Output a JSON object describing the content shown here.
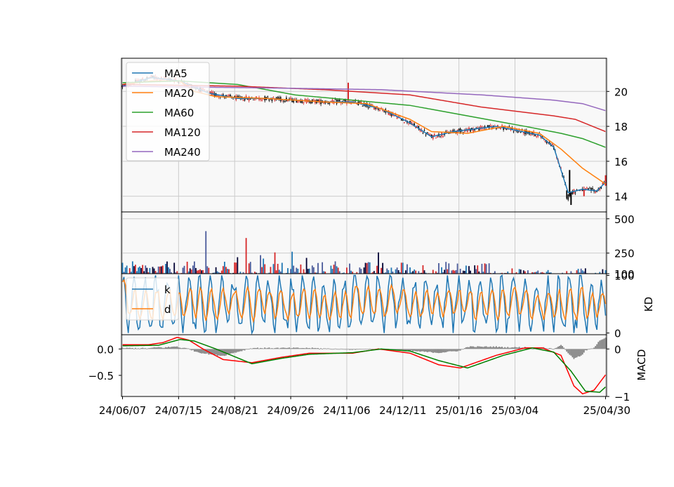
{
  "chart_data": [
    {
      "panel": "price",
      "type": "candlestick",
      "y_ticks": [
        14,
        16,
        18,
        20
      ],
      "ylim": [
        13.1,
        21.9
      ],
      "grid": true,
      "legend": "top-left",
      "colors": {
        "up": "#d62728",
        "down": "#000000",
        "bg": "#f8f8f8",
        "grid": "#cccccc"
      },
      "series": [
        {
          "name": "MA5",
          "color": "#1f77b4",
          "anchors": [
            [
              0,
              20.3
            ],
            [
              20,
              20.8
            ],
            [
              40,
              20.6
            ],
            [
              60,
              19.9
            ],
            [
              80,
              19.6
            ],
            [
              100,
              19.6
            ],
            [
              120,
              19.5
            ],
            [
              140,
              19.4
            ],
            [
              160,
              19.4
            ],
            [
              180,
              19.0
            ],
            [
              200,
              18.2
            ],
            [
              215,
              17.4
            ],
            [
              230,
              17.7
            ],
            [
              260,
              18.0
            ],
            [
              290,
              17.5
            ],
            [
              300,
              16.8
            ],
            [
              310,
              14.2
            ],
            [
              320,
              14.4
            ],
            [
              330,
              14.3
            ],
            [
              336,
              14.8
            ]
          ]
        },
        {
          "name": "MA20",
          "color": "#ff7f0e",
          "anchors": [
            [
              0,
              20.4
            ],
            [
              20,
              20.6
            ],
            [
              40,
              20.6
            ],
            [
              50,
              20.0
            ],
            [
              65,
              19.7
            ],
            [
              100,
              19.6
            ],
            [
              140,
              19.4
            ],
            [
              170,
              19.3
            ],
            [
              200,
              18.4
            ],
            [
              215,
              17.7
            ],
            [
              240,
              17.6
            ],
            [
              265,
              18.0
            ],
            [
              290,
              17.6
            ],
            [
              305,
              16.7
            ],
            [
              320,
              15.6
            ],
            [
              336,
              14.7
            ]
          ]
        },
        {
          "name": "MA60",
          "color": "#2ca02c",
          "anchors": [
            [
              0,
              20.5
            ],
            [
              40,
              20.6
            ],
            [
              80,
              20.4
            ],
            [
              120,
              19.8
            ],
            [
              160,
              19.5
            ],
            [
              200,
              19.2
            ],
            [
              240,
              18.6
            ],
            [
              280,
              18.0
            ],
            [
              305,
              17.6
            ],
            [
              320,
              17.3
            ],
            [
              336,
              16.8
            ]
          ]
        },
        {
          "name": "MA120",
          "color": "#d62728",
          "anchors": [
            [
              0,
              20.4
            ],
            [
              80,
              20.3
            ],
            [
              140,
              20.1
            ],
            [
              200,
              19.8
            ],
            [
              250,
              19.1
            ],
            [
              300,
              18.6
            ],
            [
              315,
              18.4
            ],
            [
              336,
              17.7
            ]
          ]
        },
        {
          "name": "MA240",
          "color": "#9467bd",
          "anchors": [
            [
              0,
              20.3
            ],
            [
              100,
              20.2
            ],
            [
              180,
              20.1
            ],
            [
              250,
              19.8
            ],
            [
              300,
              19.5
            ],
            [
              320,
              19.3
            ],
            [
              336,
              18.9
            ]
          ]
        }
      ]
    },
    {
      "panel": "volume",
      "type": "bar",
      "y_ticks": [
        100,
        250,
        500
      ],
      "ylim": [
        100,
        550
      ],
      "grid": true,
      "spikes": [
        [
          58,
          410
        ],
        [
          80,
          220
        ],
        [
          86,
          360
        ],
        [
          96,
          235
        ],
        [
          98,
          210
        ],
        [
          106,
          255
        ],
        [
          118,
          260
        ],
        [
          128,
          215
        ],
        [
          148,
          190
        ],
        [
          178,
          255
        ],
        [
          195,
          180
        ],
        [
          252,
          175
        ]
      ]
    },
    {
      "panel": "kd",
      "type": "line",
      "ylabel": "KD",
      "y_ticks": [
        0,
        100
      ],
      "ylim": [
        -3,
        103
      ],
      "legend": "top-left",
      "series": [
        {
          "name": "k",
          "color": "#1f77b4"
        },
        {
          "name": "d",
          "color": "#ff7f0e"
        }
      ]
    },
    {
      "panel": "macd",
      "type": "line",
      "ylabel": "MACD",
      "left_ticks": [
        "0.0",
        "−0.5"
      ],
      "right_ticks": [
        "0",
        "−1"
      ],
      "ylim": [
        -0.9,
        0.27
      ],
      "series": [
        {
          "color": "#ff0000",
          "anchors": [
            [
              0,
              0.08
            ],
            [
              18,
              0.08
            ],
            [
              28,
              0.12
            ],
            [
              38,
              0.22
            ],
            [
              46,
              0.17
            ],
            [
              56,
              0.0
            ],
            [
              70,
              -0.2
            ],
            [
              90,
              -0.26
            ],
            [
              110,
              -0.16
            ],
            [
              130,
              -0.08
            ],
            [
              160,
              -0.08
            ],
            [
              178,
              0.0
            ],
            [
              200,
              -0.08
            ],
            [
              220,
              -0.3
            ],
            [
              235,
              -0.36
            ],
            [
              260,
              -0.12
            ],
            [
              280,
              0.02
            ],
            [
              292,
              0.02
            ],
            [
              305,
              -0.12
            ],
            [
              314,
              -0.7
            ],
            [
              320,
              -0.85
            ],
            [
              328,
              -0.78
            ],
            [
              336,
              -0.49
            ]
          ]
        },
        {
          "color": "#008000",
          "anchors": [
            [
              0,
              0.06
            ],
            [
              25,
              0.07
            ],
            [
              40,
              0.18
            ],
            [
              50,
              0.15
            ],
            [
              65,
              0.0
            ],
            [
              90,
              -0.28
            ],
            [
              110,
              -0.18
            ],
            [
              130,
              -0.1
            ],
            [
              160,
              -0.07
            ],
            [
              180,
              0.0
            ],
            [
              200,
              -0.04
            ],
            [
              220,
              -0.22
            ],
            [
              240,
              -0.36
            ],
            [
              265,
              -0.12
            ],
            [
              285,
              0.02
            ],
            [
              300,
              -0.06
            ],
            [
              312,
              -0.42
            ],
            [
              322,
              -0.8
            ],
            [
              332,
              -0.82
            ],
            [
              336,
              -0.72
            ]
          ]
        }
      ]
    },
    {
      "panel": "x_axis",
      "type": "date_axis",
      "x_ticks": [
        {
          "i": 0,
          "label": "24/06/07"
        },
        {
          "i": 39,
          "label": "24/07/15"
        },
        {
          "i": 78,
          "label": "24/08/21"
        },
        {
          "i": 117,
          "label": "24/09/26"
        },
        {
          "i": 156,
          "label": "24/11/06"
        },
        {
          "i": 195,
          "label": "24/12/11"
        },
        {
          "i": 234,
          "label": "25/01/16"
        },
        {
          "i": 273,
          "label": "25/03/04"
        },
        {
          "i": 336,
          "label": "25/04/30"
        }
      ],
      "n": 337
    }
  ]
}
